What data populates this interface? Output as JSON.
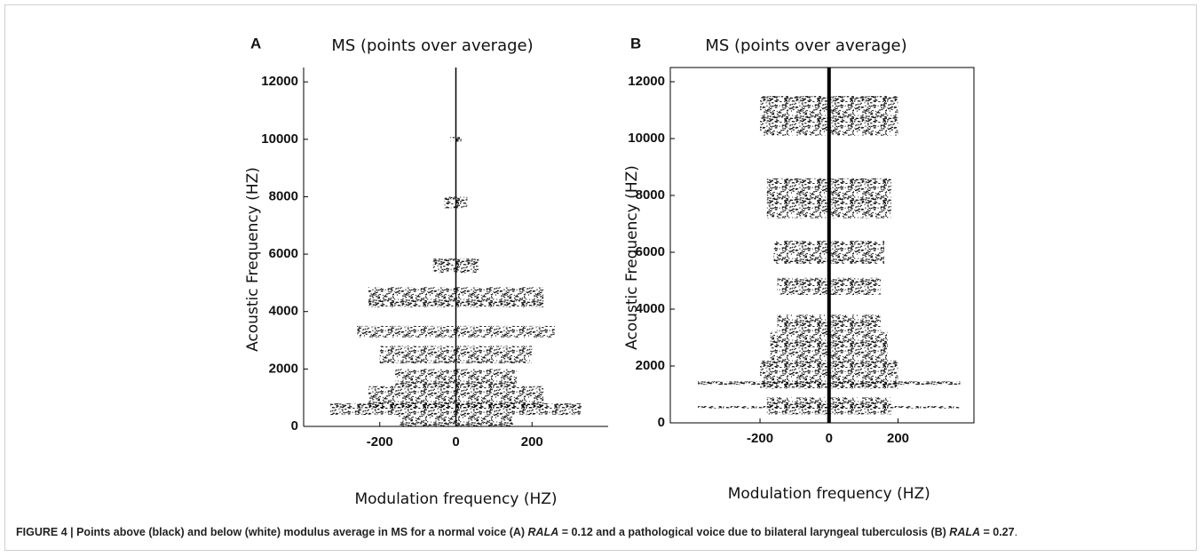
{
  "charts": [
    {
      "type": "band-density",
      "panel": "A",
      "title": "MS (points over average)",
      "xlabel": "Modulation frequency (HZ)",
      "ylabel": "Acoustic Frequency (HZ)",
      "xlim": [
        -400,
        400
      ],
      "ylim": [
        0,
        12500
      ],
      "xticks": [
        -200,
        0,
        200
      ],
      "yticks": [
        0,
        2000,
        4000,
        6000,
        8000,
        10000,
        12000
      ],
      "frame": false,
      "bands": {
        "y": [
          10000,
          7800,
          5600,
          4500,
          3300,
          2500,
          1700,
          1000,
          600,
          200
        ],
        "height": [
          80,
          200,
          250,
          350,
          200,
          300,
          300,
          400,
          200,
          200
        ],
        "spread": [
          15,
          30,
          60,
          230,
          260,
          200,
          160,
          230,
          330,
          150
        ]
      }
    },
    {
      "type": "band-density",
      "panel": "B",
      "title": "MS (points over average)",
      "xlabel": "Modulation frequency (HZ)",
      "ylabel": "Acoustic Frequency (HZ)",
      "xlim": [
        -460,
        420
      ],
      "ylim": [
        0,
        12500
      ],
      "xticks": [
        -200,
        0,
        200
      ],
      "yticks": [
        0,
        2000,
        4000,
        6000,
        8000,
        10000,
        12000
      ],
      "frame": true,
      "bands": {
        "y": [
          10800,
          7900,
          6000,
          4800,
          3500,
          2700,
          1700,
          1400,
          600,
          550
        ],
        "height": [
          700,
          700,
          400,
          300,
          300,
          500,
          500,
          60,
          300,
          40
        ],
        "spread": [
          200,
          180,
          160,
          150,
          150,
          170,
          200,
          380,
          180,
          380
        ]
      }
    }
  ],
  "caption": [
    "FIGURE 4 | Points above (black) and below (white) modulus average in MS for a normal voice (A) ",
    "RALA",
    " = 0.12 and a pathological voice due to bilateral laryngeal tuberculosis (B) ",
    "RALA",
    " = 0.27",
    "."
  ]
}
